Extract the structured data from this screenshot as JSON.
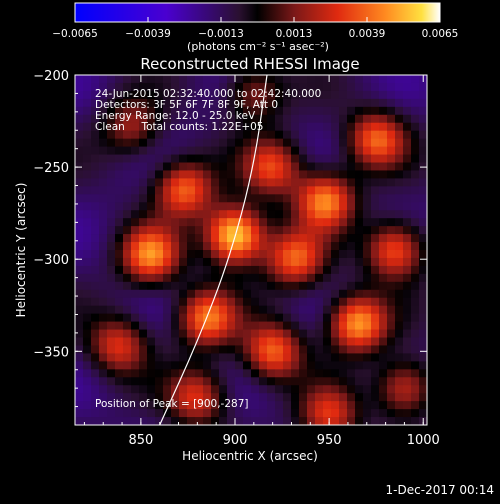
{
  "chart_data": {
    "type": "heatmap",
    "title": "Reconstructed RHESSI Image",
    "xlabel": "Heliocentric X (arcsec)",
    "ylabel": "Heliocentric Y (arcsec)",
    "xlim": [
      815,
      1002
    ],
    "ylim": [
      -390,
      -200
    ],
    "x_ticks": [
      850,
      900,
      950,
      1000
    ],
    "y_ticks": [
      -200,
      -250,
      -300,
      -350
    ],
    "colorbar": {
      "range": [
        -0.0065,
        0.0065
      ],
      "ticks": [
        "-0.0065",
        "-0.0039",
        "-0.0013",
        "0.0013",
        "0.0039",
        "0.0065"
      ],
      "unit_label": "(photons cm⁻² s⁻¹ asec⁻²)"
    },
    "annotations": [
      "24-Jun-2015 02:32:40.000 to 02:42:40.000",
      "Detectors: 3F 5F 6F 7F 8F 9F, Att 0",
      "Energy Range: 12.0 - 25.0 keV",
      "Clean     Total counts: 1.22E+05"
    ],
    "peak_label": "Position of Peak = [900,-287]",
    "peak": {
      "x": 900,
      "y": -287,
      "value": 0.0065
    },
    "sources": [
      {
        "x": 900,
        "y": -287,
        "value": 0.0065
      },
      {
        "x": 855,
        "y": -298,
        "value": 0.0045
      },
      {
        "x": 873,
        "y": -262,
        "value": 0.004
      },
      {
        "x": 885,
        "y": -332,
        "value": 0.0042
      },
      {
        "x": 838,
        "y": -347,
        "value": 0.003
      },
      {
        "x": 920,
        "y": -250,
        "value": 0.0033
      },
      {
        "x": 948,
        "y": -268,
        "value": 0.0045
      },
      {
        "x": 932,
        "y": -300,
        "value": 0.0038
      },
      {
        "x": 965,
        "y": -335,
        "value": 0.005
      },
      {
        "x": 985,
        "y": -295,
        "value": 0.004
      },
      {
        "x": 975,
        "y": -235,
        "value": 0.0038
      },
      {
        "x": 920,
        "y": -350,
        "value": 0.004
      },
      {
        "x": 880,
        "y": -375,
        "value": 0.003
      },
      {
        "x": 990,
        "y": -370,
        "value": 0.003
      },
      {
        "x": 950,
        "y": -385,
        "value": 0.003
      },
      {
        "x": 845,
        "y": -228,
        "value": 0.002
      },
      {
        "x": 910,
        "y": -210,
        "value": 0.002
      }
    ],
    "limb_curve": [
      [
        860,
        -390
      ],
      [
        880,
        -345
      ],
      [
        897,
        -300
      ],
      [
        910,
        -250
      ],
      [
        917,
        -200
      ]
    ]
  },
  "footer": {
    "date": "1-Dec-2017 00:14"
  }
}
